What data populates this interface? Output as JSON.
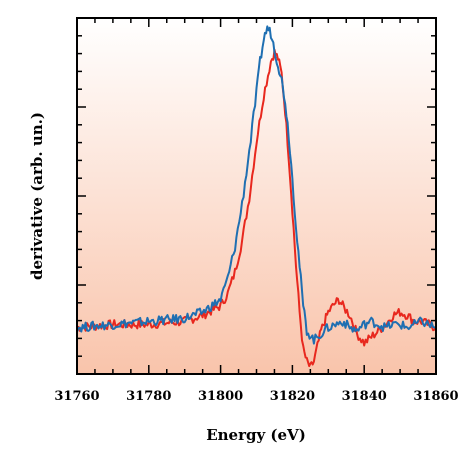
{
  "chart_data": {
    "type": "line",
    "title": "",
    "xlabel": "Energy (eV)",
    "ylabel": "derivative (arb. un.)",
    "xlim": [
      31760,
      31860
    ],
    "ylim": [
      -0.15,
      1.0
    ],
    "x_ticks": [
      "31760",
      "31780",
      "31800",
      "31820",
      "31840",
      "31860"
    ],
    "y_tick_labels_shown": false,
    "background_gradient": [
      "#ffffff",
      "#f9c4ab"
    ],
    "series": [
      {
        "color": "#e8281e",
        "x": [
          31760,
          31770,
          31780,
          31790,
          31795,
          31800,
          31802,
          31804,
          31806,
          31808,
          31810,
          31812,
          31814,
          31815,
          31816,
          31817,
          31818,
          31819,
          31820,
          31821,
          31822,
          31823,
          31824,
          31825,
          31826,
          31827,
          31828,
          31829,
          31830,
          31832,
          31833,
          31834,
          31836,
          31838,
          31840,
          31842,
          31844,
          31846,
          31848,
          31850,
          31852,
          31854,
          31856,
          31858,
          31860
        ],
        "y": [
          0.0,
          0.01,
          0.01,
          0.02,
          0.04,
          0.07,
          0.11,
          0.18,
          0.28,
          0.42,
          0.6,
          0.75,
          0.86,
          0.89,
          0.87,
          0.82,
          0.7,
          0.55,
          0.38,
          0.2,
          0.05,
          -0.07,
          -0.11,
          -0.13,
          -0.11,
          -0.06,
          -0.01,
          0.02,
          0.05,
          0.08,
          0.09,
          0.07,
          0.04,
          -0.02,
          -0.05,
          -0.03,
          -0.01,
          0.01,
          0.04,
          0.05,
          0.04,
          0.02,
          0.02,
          0.01,
          0.0
        ]
      },
      {
        "color": "#1f6fb2",
        "x": [
          31760,
          31770,
          31780,
          31790,
          31795,
          31800,
          31802,
          31804,
          31806,
          31808,
          31810,
          31811,
          31812,
          31813,
          31814,
          31815,
          31816,
          31817,
          31818,
          31819,
          31820,
          31821,
          31822,
          31823,
          31824,
          31826,
          31828,
          31830,
          31832,
          31834,
          31836,
          31838,
          31840,
          31842,
          31844,
          31846,
          31848,
          31850,
          31852,
          31854,
          31856,
          31858,
          31860
        ],
        "y": [
          0.0,
          0.01,
          0.02,
          0.03,
          0.05,
          0.09,
          0.16,
          0.26,
          0.4,
          0.57,
          0.76,
          0.86,
          0.93,
          0.97,
          0.95,
          0.9,
          0.85,
          0.8,
          0.73,
          0.62,
          0.48,
          0.33,
          0.2,
          0.07,
          -0.01,
          -0.04,
          -0.02,
          0.0,
          0.01,
          0.02,
          0.0,
          -0.01,
          0.01,
          0.02,
          0.01,
          0.0,
          0.01,
          0.01,
          0.0,
          0.01,
          0.02,
          0.01,
          0.0
        ]
      }
    ]
  }
}
